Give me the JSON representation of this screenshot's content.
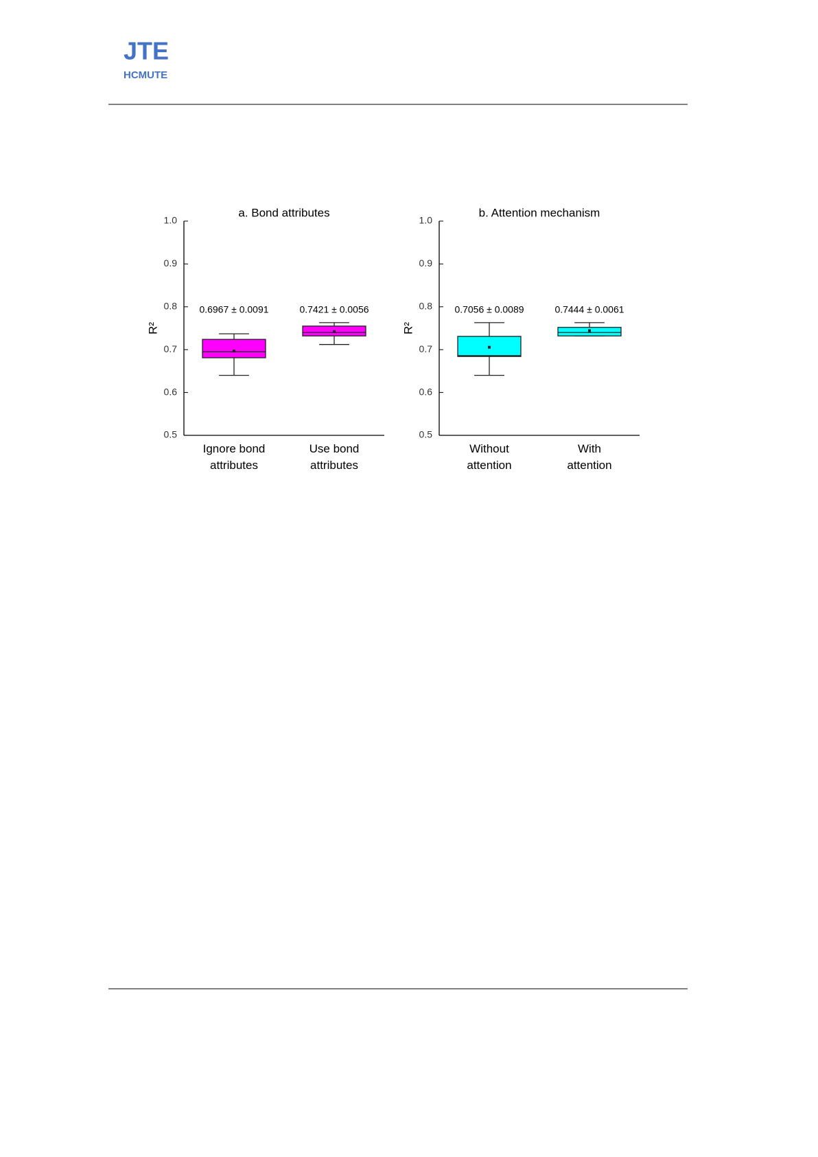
{
  "header": {
    "logo_top": "JTE",
    "logo_bottom": "HCMUTE"
  },
  "chart_data": [
    {
      "type": "box",
      "title": "a. Bond attributes",
      "ylabel": "R²",
      "categories": [
        "Ignore bond\nattributes",
        "Use bond\nattributes"
      ],
      "color": "#ff00ff",
      "boxes": [
        {
          "whisker_low": 0.64,
          "q1": 0.681,
          "median": 0.695,
          "q3": 0.724,
          "whisker_high": 0.737,
          "mean": 0.6967
        },
        {
          "whisker_low": 0.712,
          "q1": 0.732,
          "median": 0.74,
          "q3": 0.755,
          "whisker_high": 0.763,
          "mean": 0.7421
        }
      ],
      "annotations": [
        "0.6967 ± 0.0091",
        "0.7421 ± 0.0056"
      ],
      "ylim": [
        0.5,
        1.0
      ],
      "yticks": [
        {
          "value": 0.5,
          "label": "0.5"
        },
        0.6,
        0.7,
        0.8,
        0.9,
        {
          "value": 1.0,
          "label": "1.0"
        }
      ]
    },
    {
      "type": "box",
      "title": "b. Attention mechanism",
      "ylabel": "R²",
      "categories": [
        "Without\nattention",
        "With\nattention"
      ],
      "color": "#00ffff",
      "boxes": [
        {
          "whisker_low": 0.64,
          "q1": 0.684,
          "median": 0.686,
          "q3": 0.731,
          "whisker_high": 0.763,
          "mean": 0.7056
        },
        {
          "whisker_low": 0.732,
          "q1": 0.732,
          "median": 0.74,
          "q3": 0.752,
          "whisker_high": 0.763,
          "mean": 0.7444
        }
      ],
      "annotations": [
        "0.7056 ± 0.0089",
        "0.7444 ± 0.0061"
      ],
      "ylim": [
        0.5,
        1.0
      ],
      "yticks": [
        {
          "value": 0.5,
          "label": "0.5"
        },
        0.6,
        0.7,
        0.8,
        0.9,
        {
          "value": 1.0,
          "label": "1.0"
        }
      ]
    }
  ]
}
